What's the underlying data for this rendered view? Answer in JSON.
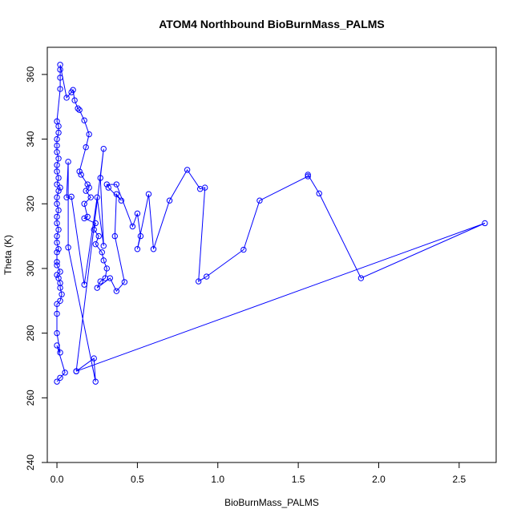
{
  "chart_data": {
    "type": "line",
    "title": "ATOM4 Northbound BioBurnMass_PALMS",
    "xlabel": "BioBurnMass_PALMS",
    "ylabel": "Theta (K)",
    "x_ticks": [
      "0.0",
      "0.5",
      "1.0",
      "1.5",
      "2.0",
      "2.5"
    ],
    "y_ticks": [
      "240",
      "260",
      "280",
      "300",
      "320",
      "340",
      "360"
    ],
    "xlim": [
      -0.06,
      2.73
    ],
    "ylim": [
      240.0,
      368.4
    ],
    "grid": false,
    "legend": "none",
    "series": [
      {
        "color": "#0000ff",
        "marker": "open-circle",
        "points": [
          [
            0.0,
            265.0
          ],
          [
            0.02,
            266.2
          ],
          [
            0.05,
            267.8
          ],
          [
            0.0,
            276.2
          ],
          [
            0.02,
            274.0
          ],
          [
            0.0,
            280.0
          ],
          [
            0.0,
            286.0
          ],
          [
            0.0,
            289.0
          ],
          [
            0.02,
            290.0
          ],
          [
            0.03,
            292.0
          ],
          [
            0.02,
            294.0
          ],
          [
            0.02,
            295.5
          ],
          [
            0.01,
            297.0
          ],
          [
            0.0,
            298.0
          ],
          [
            0.02,
            299.0
          ],
          [
            0.0,
            301.0
          ],
          [
            0.0,
            302.0
          ],
          [
            0.0,
            305.0
          ],
          [
            0.01,
            306.0
          ],
          [
            0.0,
            308.0
          ],
          [
            0.0,
            310.0
          ],
          [
            0.01,
            312.0
          ],
          [
            0.0,
            314.0
          ],
          [
            0.0,
            316.0
          ],
          [
            0.01,
            318.0
          ],
          [
            0.0,
            320.0
          ],
          [
            0.0,
            322.0
          ],
          [
            0.01,
            324.0
          ],
          [
            0.02,
            325.0
          ],
          [
            0.0,
            326.0
          ],
          [
            0.01,
            328.0
          ],
          [
            0.0,
            330.0
          ],
          [
            0.0,
            332.0
          ],
          [
            0.01,
            334.0
          ],
          [
            0.0,
            336.0
          ],
          [
            0.0,
            338.0
          ],
          [
            0.0,
            340.0
          ],
          [
            0.01,
            342.0
          ],
          [
            0.01,
            344.0
          ],
          [
            0.0,
            345.5
          ],
          [
            0.02,
            355.5
          ],
          [
            0.02,
            359.0
          ],
          [
            0.02,
            361.5
          ],
          [
            0.02,
            363.0
          ],
          [
            0.06,
            352.8
          ],
          [
            0.09,
            354.5
          ],
          [
            0.1,
            355.2
          ],
          [
            0.11,
            352.0
          ],
          [
            0.13,
            349.5
          ],
          [
            0.14,
            349.0
          ],
          [
            0.17,
            345.8
          ],
          [
            0.2,
            341.5
          ],
          [
            0.18,
            337.5
          ],
          [
            0.14,
            330.0
          ],
          [
            0.15,
            329.0
          ],
          [
            0.19,
            326.0
          ],
          [
            0.2,
            325.0
          ],
          [
            0.18,
            324.0
          ],
          [
            0.21,
            322.0
          ],
          [
            0.17,
            320.0
          ],
          [
            0.19,
            316.0
          ],
          [
            0.17,
            315.5
          ],
          [
            0.24,
            314.0
          ],
          [
            0.23,
            312.0
          ],
          [
            0.26,
            310.0
          ],
          [
            0.24,
            307.5
          ],
          [
            0.28,
            305.0
          ],
          [
            0.29,
            302.5
          ],
          [
            0.31,
            300.0
          ],
          [
            0.3,
            297.0
          ],
          [
            0.27,
            296.0
          ],
          [
            0.25,
            294.0
          ],
          [
            0.33,
            297.0
          ],
          [
            0.37,
            293.0
          ],
          [
            0.42,
            295.8
          ],
          [
            0.36,
            310.0
          ],
          [
            0.37,
            323.0
          ],
          [
            0.4,
            321.0
          ],
          [
            0.32,
            325.0
          ],
          [
            0.31,
            326.0
          ],
          [
            0.37,
            326.0
          ],
          [
            0.47,
            313.0
          ],
          [
            0.5,
            317.0
          ],
          [
            0.52,
            310.0
          ],
          [
            0.5,
            306.0
          ],
          [
            0.57,
            323.0
          ],
          [
            0.6,
            306.0
          ],
          [
            0.7,
            321.0
          ],
          [
            0.81,
            330.5
          ],
          [
            0.89,
            324.6
          ],
          [
            0.92,
            325.0
          ],
          [
            0.88,
            296.0
          ],
          [
            0.93,
            297.5
          ],
          [
            1.16,
            305.8
          ],
          [
            1.26,
            321.0
          ],
          [
            1.56,
            328.5
          ],
          [
            1.56,
            329.0
          ],
          [
            1.63,
            323.2
          ],
          [
            1.89,
            297.0
          ],
          [
            2.66,
            314.0
          ],
          [
            0.12,
            268.2
          ],
          [
            0.23,
            272.2
          ],
          [
            0.24,
            265.0
          ],
          [
            0.07,
            306.5
          ],
          [
            0.07,
            333.0
          ],
          [
            0.06,
            322.0
          ],
          [
            0.09,
            322.2
          ],
          [
            0.17,
            295.0
          ],
          [
            0.25,
            322.0
          ],
          [
            0.29,
            307.0
          ],
          [
            0.27,
            328.0
          ],
          [
            0.29,
            337.0
          ],
          [
            0.12,
            268.2
          ]
        ]
      }
    ]
  }
}
